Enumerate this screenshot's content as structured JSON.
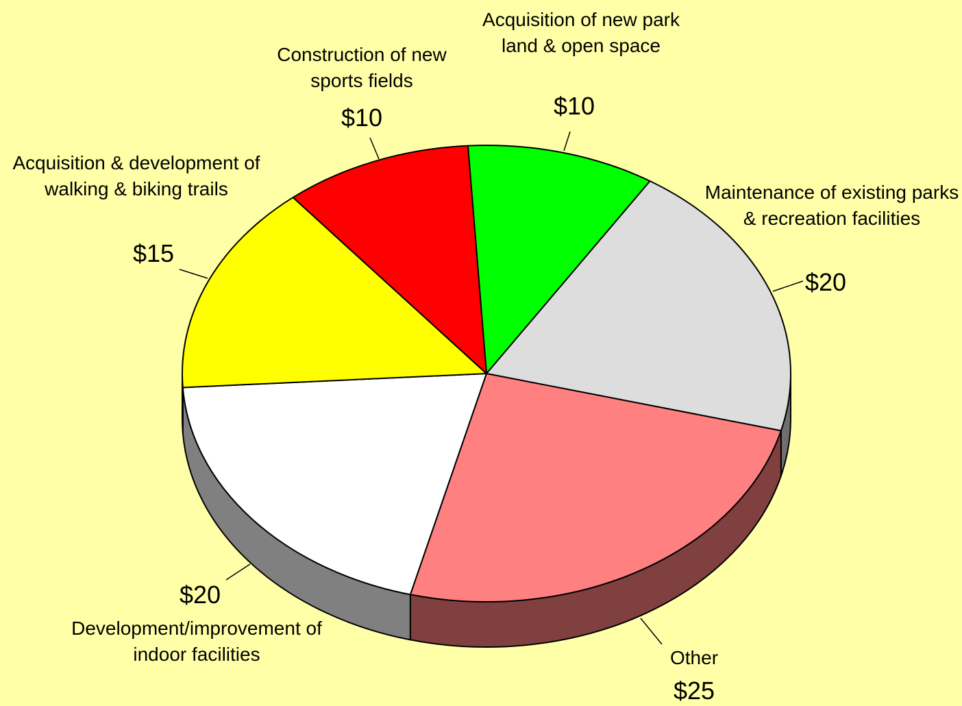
{
  "chart_data": {
    "type": "pie3d",
    "categories": [
      "Acquisition of new park land & open space",
      "Maintenance of existing parks & recreation facilities",
      "Other",
      "Development/improvement of indoor facilities",
      "Acquisition & development of walking & biking trails",
      "Construction of new sports fields"
    ],
    "values": [
      10,
      20,
      25,
      20,
      15,
      10
    ],
    "value_labels": [
      "$10",
      "$20",
      "$25",
      "$20",
      "$15",
      "$10"
    ],
    "colors": [
      "#00ff00",
      "#dddddd",
      "#ff8080",
      "#ffffff",
      "#ffff00",
      "#ff0000"
    ]
  }
}
